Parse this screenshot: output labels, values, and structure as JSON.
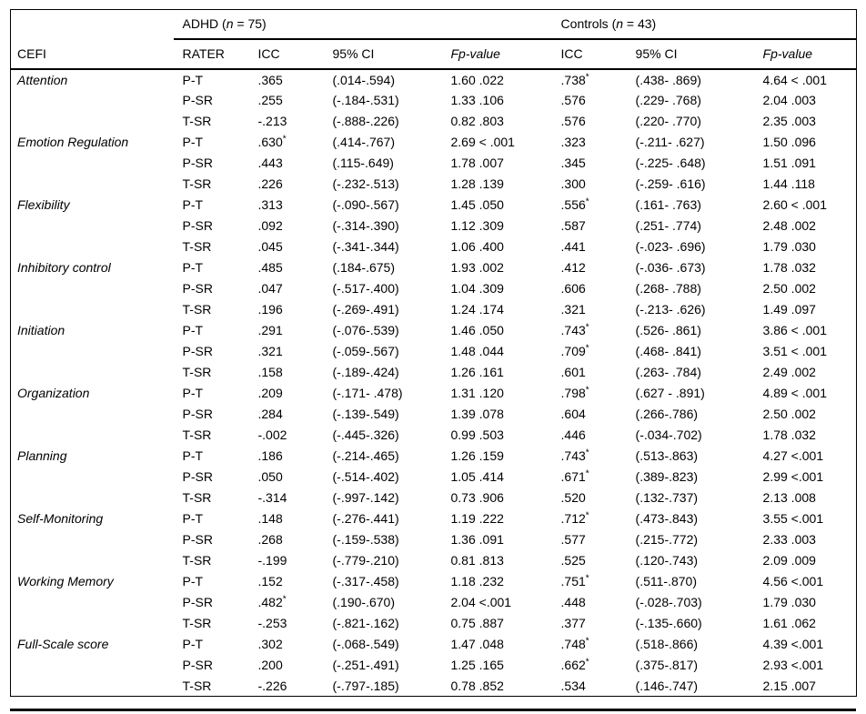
{
  "table": {
    "title_column": "CEFI",
    "groups": [
      {
        "name_prefix": "ADHD (",
        "n_italic": "n",
        "name_suffix": " = 75)"
      },
      {
        "name_prefix": "Controls (",
        "n_italic": "n",
        "name_suffix": " = 43)"
      }
    ],
    "columns": {
      "rater": "RATER",
      "icc": "ICC",
      "ci": "95% CI",
      "f": "Fp-value"
    },
    "sections": [
      {
        "domain": "Attention",
        "rows": [
          {
            "rater": "P-T",
            "adhd": {
              "icc": ".365",
              "sig": false,
              "ci": "(.014-.594)",
              "f": "1.60 .022"
            },
            "controls": {
              "icc": ".738",
              "sig": true,
              "ci": "(.438- .869)",
              "f": "4.64 < .001"
            }
          },
          {
            "rater": "P-SR",
            "adhd": {
              "icc": ".255",
              "sig": false,
              "ci": "(-.184-.531)",
              "f": "1.33 .106"
            },
            "controls": {
              "icc": ".576",
              "sig": false,
              "ci": "(.229- .768)",
              "f": "2.04 .003"
            }
          },
          {
            "rater": "T-SR",
            "adhd": {
              "icc": "-.213",
              "sig": false,
              "ci": "(-.888-.226)",
              "f": "0.82 .803"
            },
            "controls": {
              "icc": ".576",
              "sig": false,
              "ci": "(.220- .770)",
              "f": "2.35 .003"
            }
          }
        ]
      },
      {
        "domain": "Emotion Regulation",
        "rows": [
          {
            "rater": "P-T",
            "adhd": {
              "icc": ".630",
              "sig": true,
              "ci": "(.414-.767)",
              "f": "2.69 < .001"
            },
            "controls": {
              "icc": ".323",
              "sig": false,
              "ci": "(-.211- .627)",
              "f": "1.50 .096"
            }
          },
          {
            "rater": "P-SR",
            "adhd": {
              "icc": ".443",
              "sig": false,
              "ci": "(.115-.649)",
              "f": "1.78 .007"
            },
            "controls": {
              "icc": ".345",
              "sig": false,
              "ci": "(-.225- .648)",
              "f": "1.51 .091"
            }
          },
          {
            "rater": "T-SR",
            "adhd": {
              "icc": ".226",
              "sig": false,
              "ci": "(-.232-.513)",
              "f": "1.28 .139"
            },
            "controls": {
              "icc": ".300",
              "sig": false,
              "ci": "(-.259- .616)",
              "f": "1.44 .118"
            }
          }
        ]
      },
      {
        "domain": "Flexibility",
        "rows": [
          {
            "rater": "P-T",
            "adhd": {
              "icc": ".313",
              "sig": false,
              "ci": "(-.090-.567)",
              "f": "1.45 .050"
            },
            "controls": {
              "icc": ".556",
              "sig": true,
              "ci": "(.161- .763)",
              "f": "2.60 < .001"
            }
          },
          {
            "rater": "P-SR",
            "adhd": {
              "icc": ".092",
              "sig": false,
              "ci": "(-.314-.390)",
              "f": "1.12 .309"
            },
            "controls": {
              "icc": ".587",
              "sig": false,
              "ci": "(.251- .774)",
              "f": "2.48 .002"
            }
          },
          {
            "rater": "T-SR",
            "adhd": {
              "icc": ".045",
              "sig": false,
              "ci": "(-.341-.344)",
              "f": "1.06 .400"
            },
            "controls": {
              "icc": ".441",
              "sig": false,
              "ci": "(-.023- .696)",
              "f": "1.79 .030"
            }
          }
        ]
      },
      {
        "domain": "Inhibitory control",
        "rows": [
          {
            "rater": "P-T",
            "adhd": {
              "icc": ".485",
              "sig": false,
              "ci": "(.184-.675)",
              "f": "1.93 .002"
            },
            "controls": {
              "icc": ".412",
              "sig": false,
              "ci": "(-.036- .673)",
              "f": "1.78 .032"
            }
          },
          {
            "rater": "P-SR",
            "adhd": {
              "icc": ".047",
              "sig": false,
              "ci": "(-.517-.400)",
              "f": "1.04 .309"
            },
            "controls": {
              "icc": ".606",
              "sig": false,
              "ci": "(.268- .788)",
              "f": "2.50 .002"
            }
          },
          {
            "rater": "T-SR",
            "adhd": {
              "icc": ".196",
              "sig": false,
              "ci": "(-.269-.491)",
              "f": "1.24 .174"
            },
            "controls": {
              "icc": ".321",
              "sig": false,
              "ci": "(-.213- .626)",
              "f": "1.49 .097"
            }
          }
        ]
      },
      {
        "domain": "Initiation",
        "rows": [
          {
            "rater": "P-T",
            "adhd": {
              "icc": ".291",
              "sig": false,
              "ci": "(-.076-.539)",
              "f": "1.46 .050"
            },
            "controls": {
              "icc": ".743",
              "sig": true,
              "ci": "(.526- .861)",
              "f": "3.86 < .001"
            }
          },
          {
            "rater": "P-SR",
            "adhd": {
              "icc": ".321",
              "sig": false,
              "ci": "(-.059-.567)",
              "f": "1.48 .044"
            },
            "controls": {
              "icc": ".709",
              "sig": true,
              "ci": "(.468- .841)",
              "f": "3.51 < .001"
            }
          },
          {
            "rater": "T-SR",
            "adhd": {
              "icc": ".158",
              "sig": false,
              "ci": "(-.189-.424)",
              "f": "1.26 .161"
            },
            "controls": {
              "icc": ".601",
              "sig": false,
              "ci": "(.263- .784)",
              "f": "2.49 .002"
            }
          }
        ]
      },
      {
        "domain": "Organization",
        "rows": [
          {
            "rater": "P-T",
            "adhd": {
              "icc": ".209",
              "sig": false,
              "ci": "(-.171- .478)",
              "f": "1.31 .120"
            },
            "controls": {
              "icc": ".798",
              "sig": true,
              "ci": "(.627 - .891)",
              "f": "4.89 < .001"
            }
          },
          {
            "rater": "P-SR",
            "adhd": {
              "icc": ".284",
              "sig": false,
              "ci": "(-.139-.549)",
              "f": "1.39 .078"
            },
            "controls": {
              "icc": ".604",
              "sig": false,
              "ci": "(.266-.786)",
              "f": "2.50 .002"
            }
          },
          {
            "rater": "T-SR",
            "adhd": {
              "icc": "-.002",
              "sig": false,
              "ci": "(-.445-.326)",
              "f": "0.99 .503"
            },
            "controls": {
              "icc": ".446",
              "sig": false,
              "ci": "(-.034-.702)",
              "f": "1.78 .032"
            }
          }
        ]
      },
      {
        "domain": "Planning",
        "rows": [
          {
            "rater": "P-T",
            "adhd": {
              "icc": ".186",
              "sig": false,
              "ci": "(-.214-.465)",
              "f": "1.26 .159"
            },
            "controls": {
              "icc": ".743",
              "sig": true,
              "ci": "(.513-.863)",
              "f": "4.27 <.001"
            }
          },
          {
            "rater": "P-SR",
            "adhd": {
              "icc": ".050",
              "sig": false,
              "ci": "(-.514-.402)",
              "f": "1.05 .414"
            },
            "controls": {
              "icc": ".671",
              "sig": true,
              "ci": "(.389-.823)",
              "f": "2.99 <.001"
            }
          },
          {
            "rater": "T-SR",
            "adhd": {
              "icc": "-.314",
              "sig": false,
              "ci": "(-.997-.142)",
              "f": "0.73 .906"
            },
            "controls": {
              "icc": ".520",
              "sig": false,
              "ci": "(.132-.737)",
              "f": "2.13 .008"
            }
          }
        ]
      },
      {
        "domain": "Self-Monitoring",
        "rows": [
          {
            "rater": "P-T",
            "adhd": {
              "icc": ".148",
              "sig": false,
              "ci": "(-.276-.441)",
              "f": "1.19 .222"
            },
            "controls": {
              "icc": ".712",
              "sig": true,
              "ci": "(.473-.843)",
              "f": "3.55 <.001"
            }
          },
          {
            "rater": "P-SR",
            "adhd": {
              "icc": ".268",
              "sig": false,
              "ci": "(-.159-.538)",
              "f": "1.36 .091"
            },
            "controls": {
              "icc": ".577",
              "sig": false,
              "ci": "(.215-.772)",
              "f": "2.33 .003"
            }
          },
          {
            "rater": "T-SR",
            "adhd": {
              "icc": "-.199",
              "sig": false,
              "ci": "(-.779-.210)",
              "f": "0.81 .813"
            },
            "controls": {
              "icc": ".525",
              "sig": false,
              "ci": "(.120-.743)",
              "f": "2.09 .009"
            }
          }
        ]
      },
      {
        "domain": "Working Memory",
        "rows": [
          {
            "rater": "P-T",
            "adhd": {
              "icc": ".152",
              "sig": false,
              "ci": "(-.317-.458)",
              "f": "1.18 .232"
            },
            "controls": {
              "icc": ".751",
              "sig": true,
              "ci": "(.511-.870)",
              "f": "4.56 <.001"
            }
          },
          {
            "rater": "P-SR",
            "adhd": {
              "icc": ".482",
              "sig": true,
              "ci": "(.190-.670)",
              "f": "2.04 <.001"
            },
            "controls": {
              "icc": ".448",
              "sig": false,
              "ci": "(-.028-.703)",
              "f": "1.79 .030"
            }
          },
          {
            "rater": "T-SR",
            "adhd": {
              "icc": "-.253",
              "sig": false,
              "ci": "(-.821-.162)",
              "f": "0.75 .887"
            },
            "controls": {
              "icc": ".377",
              "sig": false,
              "ci": "(-.135-.660)",
              "f": "1.61 .062"
            }
          }
        ]
      },
      {
        "domain": "Full-Scale score",
        "rows": [
          {
            "rater": "P-T",
            "adhd": {
              "icc": ".302",
              "sig": false,
              "ci": "(-.068-.549)",
              "f": "1.47 .048"
            },
            "controls": {
              "icc": ".748",
              "sig": true,
              "ci": "(.518-.866)",
              "f": "4.39 <.001"
            }
          },
          {
            "rater": "P-SR",
            "adhd": {
              "icc": ".200",
              "sig": false,
              "ci": "(-.251-.491)",
              "f": "1.25 .165"
            },
            "controls": {
              "icc": ".662",
              "sig": true,
              "ci": "(.375-.817)",
              "f": "2.93 <.001"
            }
          },
          {
            "rater": "T-SR",
            "adhd": {
              "icc": "-.226",
              "sig": false,
              "ci": "(-.797-.185)",
              "f": "0.78 .852"
            },
            "controls": {
              "icc": ".534",
              "sig": false,
              "ci": "(.146-.747)",
              "f": "2.15 .007"
            }
          }
        ]
      }
    ]
  }
}
